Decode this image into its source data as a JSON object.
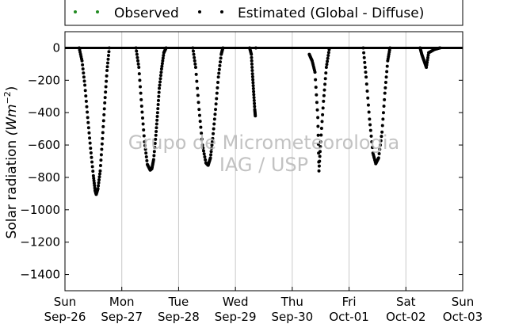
{
  "chart_data": {
    "type": "scatter",
    "title": "",
    "xlabel": "",
    "ylabel": "Solar radiation (Wm⁻²)",
    "ylabel_main": "Solar radiation ",
    "ylabel_unit": "(Wm",
    "ylabel_exp": "−2",
    "ylabel_close": ")",
    "ylim": [
      -1500,
      100
    ],
    "xlim": [
      0,
      7
    ],
    "grid": "vertical",
    "legend_position": "top",
    "yticks": [
      0,
      -200,
      -400,
      -600,
      -800,
      -1000,
      -1200,
      -1400
    ],
    "ytick_labels": [
      "0",
      "−200",
      "−400",
      "−600",
      "−800",
      "−1000",
      "−1200",
      "−1400"
    ],
    "xticks": [
      {
        "day": "Sun",
        "date": "Sep-26"
      },
      {
        "day": "Mon",
        "date": "Sep-27"
      },
      {
        "day": "Tue",
        "date": "Sep-28"
      },
      {
        "day": "Wed",
        "date": "Sep-29"
      },
      {
        "day": "Thu",
        "date": "Sep-30"
      },
      {
        "day": "Fri",
        "date": "Oct-01"
      },
      {
        "day": "Sat",
        "date": "Oct-02"
      },
      {
        "day": "Sun",
        "date": "Oct-03"
      }
    ],
    "series": [
      {
        "name": "Observed",
        "color": "#228b22",
        "points": []
      },
      {
        "name": "Estimated (Global - Diffuse)",
        "color": "#000000",
        "points": [
          [
            0.25,
            0
          ],
          [
            0.3,
            -80
          ],
          [
            0.35,
            -230
          ],
          [
            0.4,
            -430
          ],
          [
            0.45,
            -620
          ],
          [
            0.5,
            -790
          ],
          [
            0.53,
            -880
          ],
          [
            0.55,
            -905
          ],
          [
            0.58,
            -870
          ],
          [
            0.62,
            -760
          ],
          [
            0.66,
            -560
          ],
          [
            0.7,
            -340
          ],
          [
            0.74,
            -140
          ],
          [
            0.78,
            0
          ],
          [
            1.25,
            0
          ],
          [
            1.3,
            -120
          ],
          [
            1.35,
            -360
          ],
          [
            1.4,
            -580
          ],
          [
            1.45,
            -720
          ],
          [
            1.5,
            -755
          ],
          [
            1.53,
            -745
          ],
          [
            1.56,
            -690
          ],
          [
            1.6,
            -540
          ],
          [
            1.63,
            -400
          ],
          [
            1.66,
            -250
          ],
          [
            1.7,
            -130
          ],
          [
            1.74,
            -30
          ],
          [
            1.78,
            0
          ],
          [
            2.25,
            0
          ],
          [
            2.3,
            -120
          ],
          [
            2.36,
            -380
          ],
          [
            2.42,
            -600
          ],
          [
            2.48,
            -710
          ],
          [
            2.52,
            -725
          ],
          [
            2.56,
            -680
          ],
          [
            2.6,
            -560
          ],
          [
            2.65,
            -380
          ],
          [
            2.7,
            -180
          ],
          [
            2.75,
            -40
          ],
          [
            2.78,
            0
          ],
          [
            3.25,
            0
          ],
          [
            3.28,
            -40
          ],
          [
            3.3,
            -160
          ],
          [
            3.32,
            -270
          ],
          [
            3.34,
            -380
          ],
          [
            3.35,
            -420
          ],
          [
            3.36,
            0
          ],
          [
            4.3,
            -40
          ],
          [
            4.35,
            -80
          ],
          [
            4.4,
            -150
          ],
          [
            4.45,
            -430
          ],
          [
            4.47,
            -760
          ],
          [
            4.5,
            -580
          ],
          [
            4.55,
            -330
          ],
          [
            4.6,
            -120
          ],
          [
            4.65,
            -10
          ],
          [
            5.25,
            0
          ],
          [
            5.3,
            -180
          ],
          [
            5.36,
            -440
          ],
          [
            5.42,
            -650
          ],
          [
            5.47,
            -715
          ],
          [
            5.52,
            -680
          ],
          [
            5.58,
            -520
          ],
          [
            5.63,
            -280
          ],
          [
            5.68,
            -80
          ],
          [
            5.72,
            0
          ],
          [
            6.25,
            0
          ],
          [
            6.28,
            -40
          ],
          [
            6.32,
            -80
          ],
          [
            6.36,
            -120
          ],
          [
            6.4,
            -30
          ],
          [
            6.5,
            -10
          ],
          [
            6.6,
            0
          ]
        ]
      }
    ],
    "annotations": [
      "Grupo de Micrometeorologia",
      "IAG / USP"
    ]
  }
}
